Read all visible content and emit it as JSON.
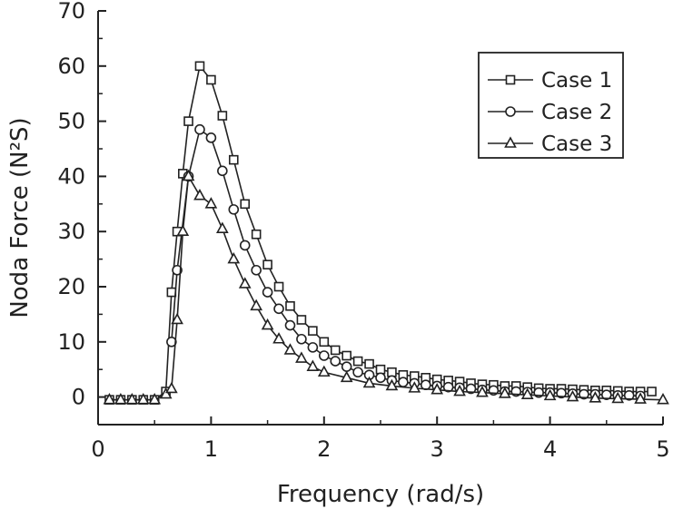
{
  "chart_data": {
    "type": "line",
    "title": "",
    "xlabel": "Frequency (rad/s)",
    "ylabel": "Noda Force (N²S)",
    "xlim": [
      0,
      5
    ],
    "ylim": [
      -5,
      70
    ],
    "xticks": [
      0,
      1,
      2,
      3,
      4,
      5
    ],
    "yticks": [
      0,
      10,
      20,
      30,
      40,
      50,
      60,
      70
    ],
    "grid": false,
    "legend_position": "top-right",
    "series": [
      {
        "name": "Case 1",
        "marker": "square",
        "x": [
          0.1,
          0.2,
          0.3,
          0.4,
          0.5,
          0.6,
          0.65,
          0.7,
          0.75,
          0.8,
          0.9,
          1.0,
          1.1,
          1.2,
          1.3,
          1.4,
          1.5,
          1.6,
          1.7,
          1.8,
          1.9,
          2.0,
          2.1,
          2.2,
          2.3,
          2.4,
          2.5,
          2.6,
          2.7,
          2.8,
          2.9,
          3.0,
          3.1,
          3.2,
          3.3,
          3.4,
          3.5,
          3.6,
          3.7,
          3.8,
          3.9,
          4.0,
          4.1,
          4.2,
          4.3,
          4.4,
          4.5,
          4.6,
          4.7,
          4.8,
          4.9
        ],
        "y": [
          -0.5,
          -0.5,
          -0.5,
          -0.5,
          -0.5,
          1.0,
          19.0,
          30.0,
          40.5,
          50.0,
          60.0,
          57.5,
          51.0,
          43.0,
          35.0,
          29.5,
          24.0,
          20.0,
          16.5,
          14.0,
          12.0,
          10.0,
          8.5,
          7.5,
          6.5,
          6.0,
          5.0,
          4.5,
          4.0,
          3.8,
          3.5,
          3.2,
          3.0,
          2.8,
          2.5,
          2.3,
          2.2,
          2.0,
          2.0,
          1.8,
          1.6,
          1.5,
          1.5,
          1.4,
          1.3,
          1.2,
          1.2,
          1.1,
          1.0,
          1.0,
          1.0
        ]
      },
      {
        "name": "Case 2",
        "marker": "circle",
        "x": [
          0.65,
          0.7,
          0.8,
          0.9,
          1.0,
          1.1,
          1.2,
          1.3,
          1.4,
          1.5,
          1.6,
          1.7,
          1.8,
          1.9,
          2.0,
          2.1,
          2.2,
          2.3,
          2.4,
          2.5,
          2.6,
          2.7,
          2.8,
          2.9,
          3.0,
          3.1,
          3.2,
          3.3,
          3.4,
          3.5,
          3.6,
          3.7,
          3.8,
          3.9,
          4.0,
          4.1,
          4.2,
          4.3,
          4.4,
          4.5,
          4.6,
          4.7,
          4.8
        ],
        "y": [
          10.0,
          23.0,
          40.0,
          48.5,
          47.0,
          41.0,
          34.0,
          27.5,
          23.0,
          19.0,
          16.0,
          13.0,
          10.5,
          9.0,
          7.5,
          6.5,
          5.5,
          4.5,
          4.0,
          3.5,
          3.0,
          2.7,
          2.5,
          2.2,
          2.0,
          1.8,
          1.7,
          1.5,
          1.3,
          1.2,
          1.0,
          1.0,
          0.9,
          0.8,
          0.8,
          0.7,
          0.6,
          0.5,
          0.5,
          0.4,
          0.3,
          0.3,
          0.2
        ]
      },
      {
        "name": "Case 3",
        "marker": "triangle",
        "x": [
          0.1,
          0.2,
          0.3,
          0.4,
          0.5,
          0.6,
          0.65,
          0.7,
          0.75,
          0.8,
          0.9,
          1.0,
          1.1,
          1.2,
          1.3,
          1.4,
          1.5,
          1.6,
          1.7,
          1.8,
          1.9,
          2.0,
          2.2,
          2.4,
          2.6,
          2.8,
          3.0,
          3.2,
          3.4,
          3.6,
          3.8,
          4.0,
          4.2,
          4.4,
          4.6,
          4.8,
          5.0
        ],
        "y": [
          -0.5,
          -0.5,
          -0.5,
          -0.5,
          -0.5,
          0.5,
          1.5,
          14.0,
          30.0,
          40.0,
          36.5,
          35.0,
          30.5,
          25.0,
          20.5,
          16.5,
          13.0,
          10.5,
          8.5,
          7.0,
          5.5,
          4.5,
          3.5,
          2.5,
          2.0,
          1.6,
          1.3,
          1.0,
          0.8,
          0.6,
          0.4,
          0.2,
          0.0,
          -0.2,
          -0.3,
          -0.4,
          -0.5
        ]
      }
    ]
  }
}
